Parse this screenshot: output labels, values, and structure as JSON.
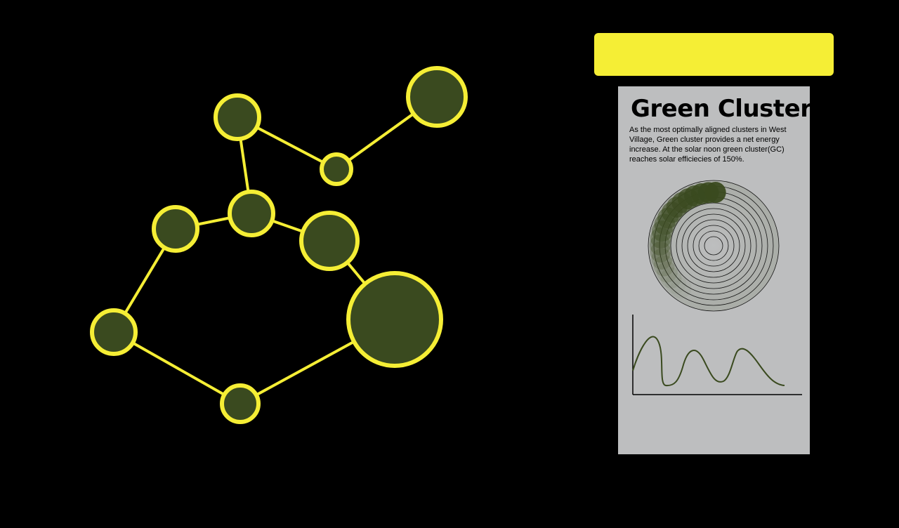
{
  "panel": {
    "title": "Green Cluster",
    "description": "As the most optimally aligned clusters in West Village, Green cluster provides a net energy increase. At the solar noon green cluster(GC) reaches solar efficiecies of 150%."
  },
  "colors": {
    "background": "#000000",
    "accent": "#f5ee35",
    "node_fill": "#3a4a1f",
    "panel_bg": "#bdbebf",
    "curve": "#3a4a1f"
  }
}
